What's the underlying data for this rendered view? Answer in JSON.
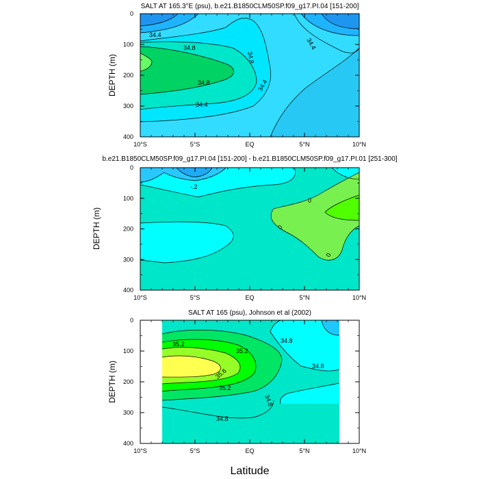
{
  "chart_data": [
    {
      "type": "contour",
      "title": "SALT AT 165.3°E (psu), b.e21.B1850CLM50SP.f09_g17.PI.04 [151-200]",
      "ylabel": "DEPTH (m)",
      "xlabel": "",
      "xlim": [
        -10,
        10
      ],
      "ylim": [
        0,
        400
      ],
      "y_inverted": true,
      "x_ticks": [
        -10,
        -5,
        0,
        5,
        10
      ],
      "x_tick_labels": [
        "10°S",
        "5°S",
        "EQ",
        "5°N",
        "10°N"
      ],
      "y_ticks": [
        0,
        100,
        200,
        300,
        400
      ],
      "y_tick_labels": [
        "0",
        "100",
        "200",
        "300",
        "400"
      ],
      "contour_labels": [
        "34.4",
        "34.8",
        "34.8",
        "34.8",
        "34.4",
        "34.4",
        "34.4"
      ],
      "colors": {
        "low": "#1e96f0",
        "mid": "#00e6ff",
        "high": "#00d264",
        "peak": "#66ff66"
      }
    },
    {
      "type": "contour",
      "title": "b.e21.B1850CLM50SP.f09_g17.PI.04 [151-200] - b.e21.B1850CLM50SP.f09_g17.PI.01 [251-300]",
      "ylabel": "DEPTH (m)",
      "xlabel": "",
      "xlim": [
        -10,
        10
      ],
      "ylim": [
        0,
        400
      ],
      "y_inverted": true,
      "x_ticks": [
        -10,
        -5,
        0,
        5,
        10
      ],
      "x_tick_labels": [
        "10°S",
        "5°S",
        "EQ",
        "5°N",
        "10°N"
      ],
      "y_ticks": [
        0,
        100,
        200,
        300,
        400
      ],
      "y_tick_labels": [
        "0",
        "100",
        "200",
        "300",
        "400"
      ],
      "contour_labels": [
        "-.2",
        "0",
        "0",
        "0"
      ],
      "colors": {
        "base": "#00e6c8",
        "neg": "#00ffff",
        "neg2": "#28c8ff",
        "pos": "#78f050",
        "pos2": "#50ff00"
      }
    },
    {
      "type": "contour",
      "title": "SALT AT 165 (psu), Johnson et al (2002)",
      "ylabel": "DEPTH (m)",
      "xlabel": "Latitude",
      "xlim": [
        -10,
        10
      ],
      "ylim": [
        0,
        400
      ],
      "y_inverted": true,
      "data_xrange": [
        -8,
        8
      ],
      "x_ticks": [
        -10,
        -5,
        0,
        5,
        10
      ],
      "x_tick_labels": [
        "10°S",
        "5°S",
        "EQ",
        "5°N",
        "10°N"
      ],
      "y_ticks": [
        0,
        100,
        200,
        300,
        400
      ],
      "y_tick_labels": [
        "0",
        "100",
        "200",
        "300",
        "400"
      ],
      "contour_labels": [
        "35.2",
        "35.2",
        "35.6",
        "35.2",
        "34.8",
        "34.8",
        "34.8",
        "34.8"
      ],
      "colors": {
        "base": "#00e6c8",
        "low": "#00ffff",
        "low2": "#1ec8ff",
        "g1": "#00e664",
        "g2": "#00ff00",
        "g3": "#96ff28",
        "y1": "#ffff50"
      }
    }
  ]
}
